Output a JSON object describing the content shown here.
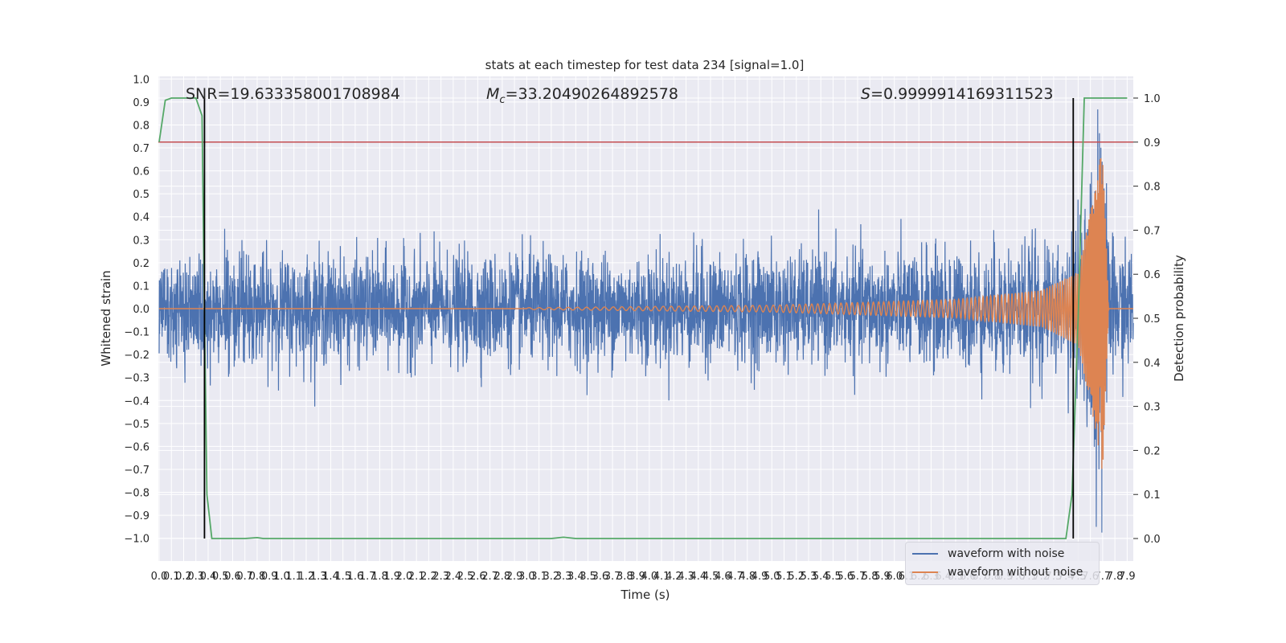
{
  "chart_data": {
    "type": "line",
    "title": "stats at each timestep for test data 234 [signal=1.0]",
    "xlabel": "Time (s)",
    "ylabel_left": "Whitened strain",
    "ylabel_right": "Detection probability",
    "xlim": [
      0.0,
      7.95
    ],
    "ylim_left": [
      -1.1,
      1.0
    ],
    "ylim_right": [
      -0.048,
      1.05
    ],
    "x_ticks": [
      "0.0",
      "0.1",
      "0.2",
      "0.3",
      "0.4",
      "0.5",
      "0.6",
      "0.7",
      "0.8",
      "0.9",
      "1.0",
      "1.1",
      "1.2",
      "1.3",
      "1.4",
      "1.5",
      "1.6",
      "1.7",
      "1.8",
      "1.9",
      "2.0",
      "2.1",
      "2.2",
      "2.3",
      "2.4",
      "2.5",
      "2.6",
      "2.7",
      "2.8",
      "2.9",
      "3.0",
      "3.1",
      "3.2",
      "3.3",
      "3.4",
      "3.5",
      "3.6",
      "3.7",
      "3.8",
      "3.9",
      "4.0",
      "4.1",
      "4.2",
      "4.3",
      "4.4",
      "4.5",
      "4.6",
      "4.7",
      "4.8",
      "4.9",
      "5.0",
      "5.1",
      "5.2",
      "5.3",
      "5.4",
      "5.5",
      "5.6",
      "5.7",
      "5.8",
      "5.9",
      "6.0",
      "6.1",
      "6.2",
      "6.3",
      "6.4",
      "6.5",
      "6.6",
      "6.7",
      "6.8",
      "6.9",
      "7.0",
      "7.1",
      "7.2",
      "7.3",
      "7.4",
      "7.5",
      "7.6",
      "7.7",
      "7.8",
      "7.9"
    ],
    "y_ticks_left": [
      "1.0",
      "0.9",
      "0.8",
      "0.7",
      "0.6",
      "0.5",
      "0.4",
      "0.3",
      "0.2",
      "0.1",
      "0.0",
      "−0.1",
      "−0.2",
      "−0.3",
      "−0.4",
      "−0.5",
      "−0.6",
      "−0.7",
      "−0.8",
      "−0.9",
      "−1.0"
    ],
    "y_ticks_right": [
      "1.0",
      "0.9",
      "0.8",
      "0.7",
      "0.6",
      "0.5",
      "0.4",
      "0.3",
      "0.2",
      "0.1",
      "0.0"
    ],
    "annotations": {
      "snr": "SNR=19.633358001708984",
      "mc_symbol": "M",
      "mc_sub": "c",
      "mc_value": "=33.20490264892578",
      "s_symbol": "S",
      "s_value": "=0.9999914169311523"
    },
    "threshold": 0.9,
    "vlines": [
      0.37,
      7.46
    ],
    "noise_envelope": {
      "t": [
        0.0,
        1.0,
        2.0,
        3.0,
        4.0,
        5.0,
        6.0,
        7.0,
        7.5,
        7.7,
        7.95
      ],
      "amp": [
        0.28,
        0.27,
        0.27,
        0.27,
        0.28,
        0.28,
        0.28,
        0.29,
        0.32,
        0.36,
        0.3
      ],
      "seed": 234
    },
    "chirp": {
      "t_merge": 7.7,
      "amp_at": [
        [
          3.0,
          0.004
        ],
        [
          5.0,
          0.015
        ],
        [
          6.5,
          0.04
        ],
        [
          7.2,
          0.08
        ],
        [
          7.5,
          0.16
        ],
        [
          7.65,
          0.55
        ],
        [
          7.7,
          0.72
        ]
      ],
      "freq_at": [
        [
          3.0,
          12
        ],
        [
          5.0,
          18
        ],
        [
          6.5,
          28
        ],
        [
          7.2,
          40
        ],
        [
          7.5,
          60
        ],
        [
          7.65,
          120
        ],
        [
          7.7,
          200
        ]
      ],
      "ringdown_end": 7.75
    },
    "detection_probability": {
      "x": [
        0.0,
        0.05,
        0.1,
        0.15,
        0.2,
        0.25,
        0.3,
        0.35,
        0.37,
        0.39,
        0.43,
        0.5,
        0.6,
        0.7,
        0.8,
        0.85,
        0.9,
        1.0,
        2.0,
        3.0,
        3.2,
        3.3,
        3.4,
        4.0,
        5.0,
        6.0,
        7.0,
        7.3,
        7.4,
        7.45,
        7.5,
        7.55,
        7.6,
        7.7,
        7.8,
        7.9
      ],
      "y": [
        0.9,
        0.995,
        1.0,
        1.0,
        1.0,
        1.0,
        1.0,
        0.96,
        0.5,
        0.1,
        0.0,
        0.0,
        0.0,
        0.0,
        0.002,
        0.0,
        0.0,
        0.0,
        0.0,
        0.0,
        0.0,
        0.003,
        0.0,
        0.0,
        0.0,
        0.0,
        0.0,
        0.0,
        0.0,
        0.1,
        0.5,
        1.0,
        1.0,
        1.0,
        1.0,
        1.0
      ]
    },
    "series": [
      {
        "name": "waveform with noise",
        "color": "#4c72b0"
      },
      {
        "name": "waveform without noise",
        "color": "#dd8452"
      }
    ],
    "probability_color": "#55a868",
    "threshold_color": "#c44e52",
    "vline_color": "#000000",
    "plot_background": "#eaeaf2",
    "grid": true,
    "legend_position": "lower right"
  }
}
